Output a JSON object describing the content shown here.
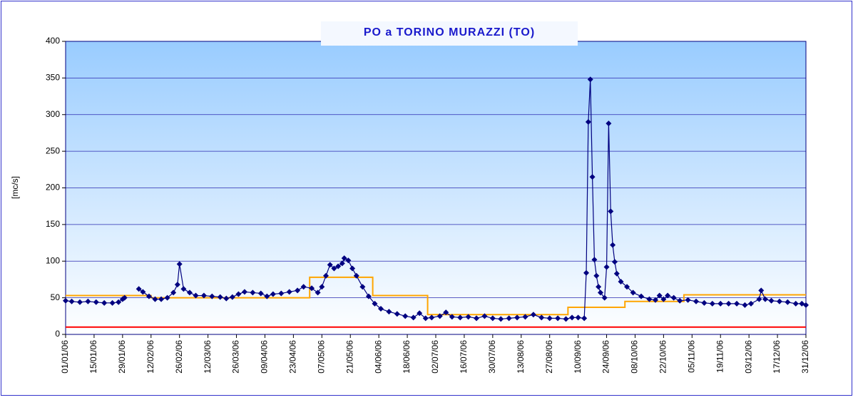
{
  "chart_data": {
    "type": "line",
    "title": "PO a TORINO MURAZZI (TO)",
    "y_label": "[mc/s]",
    "ylim": [
      0,
      400
    ],
    "yticks": [
      0,
      50,
      100,
      150,
      200,
      250,
      300,
      350,
      400
    ],
    "grid": true,
    "xlim": [
      "01/01/06",
      "31/12/06"
    ],
    "xticks": [
      "01/01/06",
      "15/01/06",
      "29/01/06",
      "12/02/06",
      "26/02/06",
      "12/03/06",
      "26/03/06",
      "09/04/06",
      "23/04/06",
      "07/05/06",
      "21/05/06",
      "04/06/06",
      "18/06/06",
      "02/07/06",
      "16/07/06",
      "30/07/06",
      "13/08/06",
      "27/08/06",
      "10/09/06",
      "24/09/06",
      "08/10/06",
      "22/10/06",
      "05/11/06",
      "19/11/06",
      "03/12/06",
      "17/12/06",
      "31/12/06"
    ],
    "series": [
      {
        "color": "#000080",
        "marker": "diamond",
        "x": [
          "01/01/06",
          "04/01/06",
          "08/01/06",
          "12/01/06",
          "16/01/06",
          "20/01/06",
          "24/01/06",
          "27/01/06",
          "29/01/06",
          "30/01/06",
          "02/02/06",
          "06/02/06",
          "08/02/06",
          "11/02/06",
          "14/02/06",
          "17/02/06",
          "20/02/06",
          "23/02/06",
          "25/02/06",
          "26/02/06",
          "28/02/06",
          "03/03/06",
          "06/03/06",
          "10/03/06",
          "14/03/06",
          "18/03/06",
          "21/03/06",
          "24/03/06",
          "27/03/06",
          "30/03/06",
          "03/04/06",
          "07/04/06",
          "10/04/06",
          "13/04/06",
          "17/04/06",
          "21/04/06",
          "25/04/06",
          "28/04/06",
          "02/05/06",
          "05/05/06",
          "07/05/06",
          "09/05/06",
          "11/05/06",
          "13/05/06",
          "15/05/06",
          "17/05/06",
          "18/05/06",
          "20/05/06",
          "22/05/06",
          "24/05/06",
          "27/05/06",
          "30/05/06",
          "02/06/06",
          "05/06/06",
          "09/06/06",
          "13/06/06",
          "17/06/06",
          "21/06/06",
          "24/06/06",
          "27/06/06",
          "30/06/06",
          "04/07/06",
          "07/07/06",
          "10/07/06",
          "14/07/06",
          "18/07/06",
          "22/07/06",
          "26/07/06",
          "30/07/06",
          "03/08/06",
          "07/08/06",
          "11/08/06",
          "15/08/06",
          "19/08/06",
          "23/08/06",
          "27/08/06",
          "31/08/06",
          "04/09/06",
          "07/09/06",
          "10/09/06",
          "13/09/06",
          "14/09/06",
          "15/09/06",
          "16/09/06",
          "17/09/06",
          "18/09/06",
          "19/09/06",
          "20/09/06",
          "21/09/06",
          "23/09/06",
          "24/09/06",
          "25/09/06",
          "26/09/06",
          "27/09/06",
          "28/09/06",
          "29/09/06",
          "01/10/06",
          "04/10/06",
          "07/10/06",
          "11/10/06",
          "15/10/06",
          "18/10/06",
          "20/10/06",
          "22/10/06",
          "24/10/06",
          "27/10/06",
          "30/10/06",
          "03/11/06",
          "07/11/06",
          "11/11/06",
          "15/11/06",
          "19/11/06",
          "23/11/06",
          "27/11/06",
          "01/12/06",
          "04/12/06",
          "08/12/06",
          "09/12/06",
          "11/12/06",
          "14/12/06",
          "18/12/06",
          "22/12/06",
          "26/12/06",
          "29/12/06",
          "31/12/06"
        ],
        "values": [
          46,
          45,
          44,
          45,
          44,
          43,
          43,
          44,
          48,
          50,
          null,
          62,
          58,
          52,
          48,
          48,
          50,
          57,
          68,
          96,
          62,
          57,
          53,
          53,
          52,
          51,
          49,
          51,
          55,
          58,
          57,
          56,
          52,
          55,
          56,
          58,
          60,
          65,
          63,
          57,
          65,
          80,
          95,
          90,
          93,
          97,
          104,
          101,
          90,
          80,
          65,
          52,
          42,
          35,
          31,
          28,
          25,
          23,
          29,
          22,
          23,
          25,
          30,
          24,
          23,
          24,
          22,
          25,
          22,
          21,
          22,
          23,
          24,
          27,
          23,
          22,
          22,
          21,
          23,
          23,
          22,
          84,
          290,
          348,
          215,
          102,
          80,
          65,
          57,
          50,
          92,
          288,
          168,
          122,
          99,
          83,
          72,
          65,
          57,
          52,
          48,
          47,
          53,
          48,
          53,
          50,
          46,
          47,
          45,
          43,
          42,
          42,
          42,
          42,
          40,
          42,
          48,
          60,
          48,
          46,
          45,
          44,
          42,
          42,
          40
        ]
      },
      {
        "color": "#ffa500",
        "step": true,
        "x": [
          "01/01/06",
          "12/02/06",
          "01/05/06",
          "01/06/06",
          "28/06/06",
          "05/09/06",
          "03/10/06",
          "01/11/06",
          "31/12/06"
        ],
        "values": [
          53,
          50,
          78,
          53,
          27,
          37,
          45,
          54,
          54
        ]
      },
      {
        "color": "#ff0000",
        "x": [
          "01/01/06",
          "31/12/06"
        ],
        "values": [
          10,
          10
        ]
      }
    ]
  }
}
